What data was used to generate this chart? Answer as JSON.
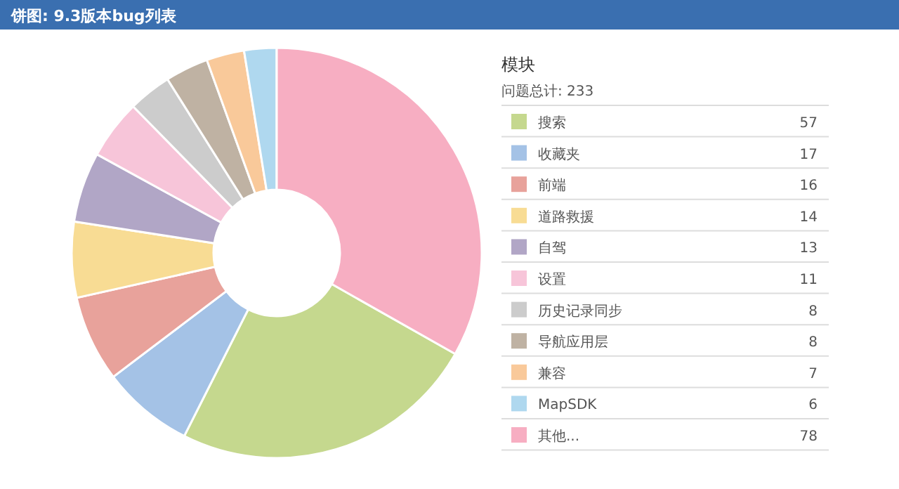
{
  "chart_data": {
    "type": "donut",
    "title": "饼图: 9.3版本bug列表",
    "legend_title": "模块",
    "annotations": [
      "问题总计: 233"
    ],
    "categories": [
      "搜索",
      "收藏夹",
      "前端",
      "道路救援",
      "自驾",
      "设置",
      "历史记录同步",
      "导航应用层",
      "兼容",
      "MapSDK",
      "其他..."
    ],
    "values": [
      57,
      17,
      16,
      14,
      13,
      11,
      8,
      8,
      7,
      6,
      78
    ],
    "colors": [
      "#c5d88e",
      "#a4c2e6",
      "#e8a29b",
      "#f8dc94",
      "#b1a6c6",
      "#f7c5d9",
      "#cccccc",
      "#bfb2a3",
      "#f9c99a",
      "#afd8ef",
      "#f7aec2"
    ],
    "data_labels": true,
    "legend": "right"
  }
}
